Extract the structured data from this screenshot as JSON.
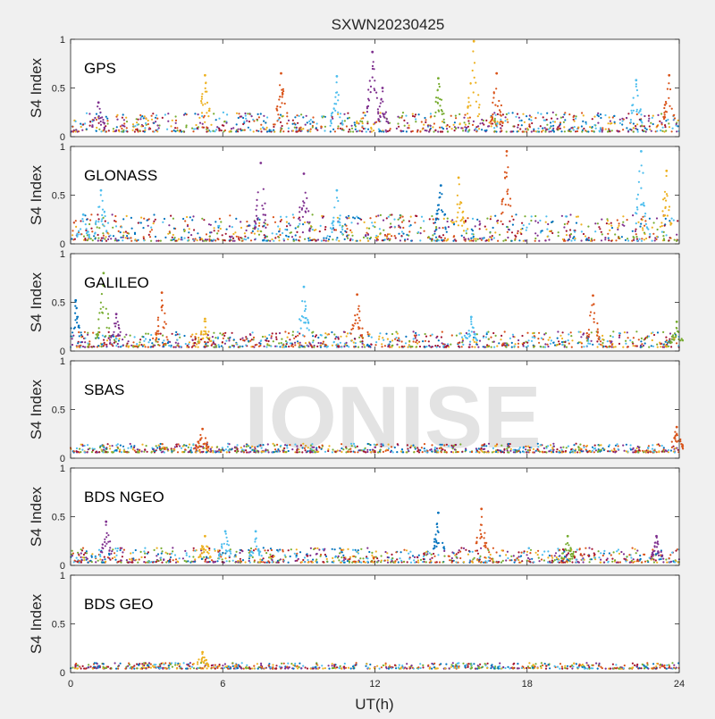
{
  "figure": {
    "title": "SXWN20230425",
    "xlabel": "UT(h)",
    "watermark": "IONISE",
    "palette": [
      "#0072BD",
      "#D95319",
      "#EDB120",
      "#7E2F8E",
      "#77AC30",
      "#4DBEEE",
      "#A2142F"
    ]
  },
  "chart_data": [
    {
      "type": "scatter",
      "panel_label": "GPS",
      "ylabel": "S4 Index",
      "xlim": [
        0,
        24
      ],
      "ylim": [
        0,
        1
      ],
      "xticks": [
        "0",
        "6",
        "12",
        "18",
        "24"
      ],
      "yticks": [
        "0",
        "0.5",
        "1"
      ],
      "xtick_values": [
        0,
        6,
        12,
        18,
        24
      ],
      "ytick_values": [
        0,
        0.5,
        1
      ],
      "baseline": [
        0.05,
        0.25
      ],
      "spikes": [
        {
          "x": 1.1,
          "y": 0.35,
          "color": 3
        },
        {
          "x": 5.3,
          "y": 0.63,
          "color": 2
        },
        {
          "x": 8.3,
          "y": 0.65,
          "color": 1
        },
        {
          "x": 10.5,
          "y": 0.62,
          "color": 5
        },
        {
          "x": 11.9,
          "y": 0.87,
          "color": 3
        },
        {
          "x": 12.3,
          "y": 0.5,
          "color": 3
        },
        {
          "x": 14.5,
          "y": 0.6,
          "color": 4
        },
        {
          "x": 15.9,
          "y": 0.98,
          "color": 2
        },
        {
          "x": 16.8,
          "y": 0.65,
          "color": 1
        },
        {
          "x": 22.3,
          "y": 0.58,
          "color": 5
        },
        {
          "x": 23.6,
          "y": 0.63,
          "color": 1
        }
      ]
    },
    {
      "type": "scatter",
      "panel_label": "GLONASS",
      "ylabel": "S4 Index",
      "xlim": [
        0,
        24
      ],
      "ylim": [
        0,
        1
      ],
      "xticks": [
        "0",
        "6",
        "12",
        "18",
        "24"
      ],
      "yticks": [
        "0",
        "0.5",
        "1"
      ],
      "xtick_values": [
        0,
        6,
        12,
        18,
        24
      ],
      "ytick_values": [
        0,
        0.5,
        1
      ],
      "baseline": [
        0.03,
        0.3
      ],
      "spikes": [
        {
          "x": 0.5,
          "y": 0.3,
          "color": 5
        },
        {
          "x": 1.2,
          "y": 0.55,
          "color": 5
        },
        {
          "x": 7.5,
          "y": 0.83,
          "color": 3
        },
        {
          "x": 9.2,
          "y": 0.72,
          "color": 3
        },
        {
          "x": 10.5,
          "y": 0.55,
          "color": 5
        },
        {
          "x": 14.6,
          "y": 0.6,
          "color": 0
        },
        {
          "x": 15.3,
          "y": 0.68,
          "color": 2
        },
        {
          "x": 17.2,
          "y": 0.95,
          "color": 1
        },
        {
          "x": 22.5,
          "y": 0.95,
          "color": 5
        },
        {
          "x": 23.5,
          "y": 0.75,
          "color": 2
        }
      ]
    },
    {
      "type": "scatter",
      "panel_label": "GALILEO",
      "ylabel": "S4 Index",
      "xlim": [
        0,
        24
      ],
      "ylim": [
        0,
        1
      ],
      "xticks": [
        "0",
        "6",
        "12",
        "18",
        "24"
      ],
      "yticks": [
        "0",
        "0.5",
        "1"
      ],
      "xtick_values": [
        0,
        6,
        12,
        18,
        24
      ],
      "ytick_values": [
        0,
        0.5,
        1
      ],
      "baseline": [
        0.04,
        0.2
      ],
      "spikes": [
        {
          "x": 0.2,
          "y": 0.52,
          "color": 0
        },
        {
          "x": 1.3,
          "y": 0.8,
          "color": 4
        },
        {
          "x": 1.8,
          "y": 0.38,
          "color": 3
        },
        {
          "x": 3.6,
          "y": 0.6,
          "color": 1
        },
        {
          "x": 5.3,
          "y": 0.33,
          "color": 2
        },
        {
          "x": 9.2,
          "y": 0.66,
          "color": 5
        },
        {
          "x": 11.3,
          "y": 0.58,
          "color": 1
        },
        {
          "x": 15.8,
          "y": 0.35,
          "color": 5
        },
        {
          "x": 20.6,
          "y": 0.57,
          "color": 1
        },
        {
          "x": 23.9,
          "y": 0.3,
          "color": 4
        }
      ]
    },
    {
      "type": "scatter",
      "panel_label": "SBAS",
      "ylabel": "S4 Index",
      "xlim": [
        0,
        24
      ],
      "ylim": [
        0,
        1
      ],
      "xticks": [
        "0",
        "6",
        "12",
        "18",
        "24"
      ],
      "yticks": [
        "0",
        "0.5",
        "1"
      ],
      "xtick_values": [
        0,
        6,
        12,
        18,
        24
      ],
      "ytick_values": [
        0,
        0.5,
        1
      ],
      "baseline": [
        0.06,
        0.15
      ],
      "spikes": [
        {
          "x": 5.2,
          "y": 0.3,
          "color": 1
        },
        {
          "x": 23.9,
          "y": 0.32,
          "color": 1
        }
      ]
    },
    {
      "type": "scatter",
      "panel_label": "BDS NGEO",
      "ylabel": "S4 Index",
      "xlim": [
        0,
        24
      ],
      "ylim": [
        0,
        1
      ],
      "xticks": [
        "0",
        "6",
        "12",
        "18",
        "24"
      ],
      "yticks": [
        "0",
        "0.5",
        "1"
      ],
      "xtick_values": [
        0,
        6,
        12,
        18,
        24
      ],
      "ytick_values": [
        0,
        0.5,
        1
      ],
      "baseline": [
        0.03,
        0.18
      ],
      "spikes": [
        {
          "x": 1.4,
          "y": 0.45,
          "color": 3
        },
        {
          "x": 5.3,
          "y": 0.3,
          "color": 2
        },
        {
          "x": 6.1,
          "y": 0.35,
          "color": 5
        },
        {
          "x": 7.3,
          "y": 0.35,
          "color": 5
        },
        {
          "x": 14.5,
          "y": 0.54,
          "color": 0
        },
        {
          "x": 16.2,
          "y": 0.58,
          "color": 1
        },
        {
          "x": 19.6,
          "y": 0.3,
          "color": 4
        },
        {
          "x": 23.1,
          "y": 0.3,
          "color": 3
        }
      ]
    },
    {
      "type": "scatter",
      "panel_label": "BDS GEO",
      "ylabel": "S4 Index",
      "xlim": [
        0,
        24
      ],
      "ylim": [
        0,
        1
      ],
      "xticks": [
        "0",
        "6",
        "12",
        "18",
        "24"
      ],
      "yticks": [
        "0",
        "0.5",
        "1"
      ],
      "xtick_values": [
        0,
        6,
        12,
        18,
        24
      ],
      "ytick_values": [
        0,
        0.5,
        1
      ],
      "baseline": [
        0.04,
        0.1
      ],
      "spikes": [
        {
          "x": 5.2,
          "y": 0.21,
          "color": 2
        }
      ]
    }
  ]
}
